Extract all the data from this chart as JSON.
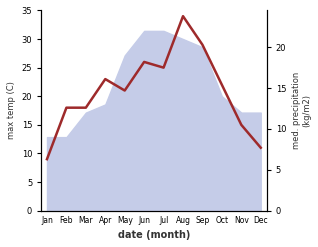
{
  "months": [
    "Jan",
    "Feb",
    "Mar",
    "Apr",
    "May",
    "Jun",
    "Jul",
    "Aug",
    "Sep",
    "Oct",
    "Nov",
    "Dec"
  ],
  "temp": [
    9,
    18,
    18,
    23,
    21,
    26,
    25,
    34,
    29,
    22,
    15,
    11
  ],
  "precip": [
    9,
    9,
    12,
    13,
    19,
    22,
    22,
    21,
    20,
    14,
    12,
    12
  ],
  "temp_color": "#9e2a2b",
  "precip_fill_color": "#c5cce8",
  "background_color": "#ffffff",
  "ylabel_left": "max temp (C)",
  "ylabel_right": "med. precipitation\n(kg/m2)",
  "xlabel": "date (month)",
  "ylim_left": [
    0,
    35
  ],
  "ylim_right": [
    0,
    24.5
  ],
  "precip_scale_max": 24.5,
  "temp_scale_max": 35
}
